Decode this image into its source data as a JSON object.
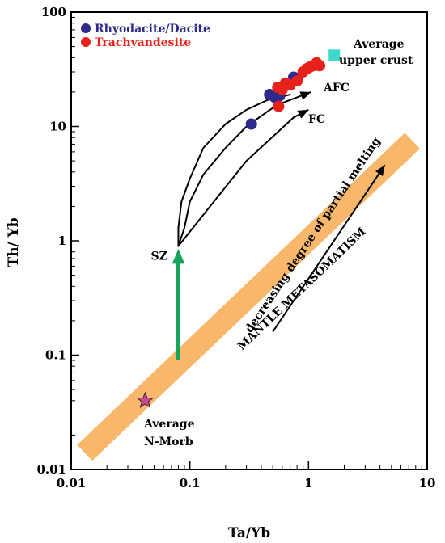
{
  "chart_data": {
    "type": "scatter",
    "x_scale": "log",
    "y_scale": "log",
    "xlim": [
      0.01,
      10
    ],
    "ylim": [
      0.01,
      100
    ],
    "xlabel": "Ta/Yb",
    "ylabel": "Th/ Yb",
    "x_ticks": [
      "0.01",
      "0.1",
      "1",
      "10"
    ],
    "y_ticks": [
      "0.01",
      "0.1",
      "1",
      "10",
      "100"
    ],
    "grid": false,
    "legend_position": "top-left",
    "series": [
      {
        "name": "Rhyodacite/Dacite",
        "color": "#2e2a8c",
        "points": [
          [
            0.33,
            10.5
          ],
          [
            0.47,
            19
          ],
          [
            0.52,
            18
          ],
          [
            0.57,
            18.5
          ],
          [
            0.75,
            27
          ],
          [
            0.8,
            26
          ]
        ]
      },
      {
        "name": "Trachyandesite",
        "color": "#e8221b",
        "points": [
          [
            0.55,
            22
          ],
          [
            0.6,
            21
          ],
          [
            0.56,
            15
          ],
          [
            0.64,
            24
          ],
          [
            0.7,
            23
          ],
          [
            0.8,
            25
          ],
          [
            0.9,
            30
          ],
          [
            0.97,
            32
          ],
          [
            1.02,
            33
          ],
          [
            1.1,
            34
          ],
          [
            1.17,
            36
          ],
          [
            1.24,
            34
          ]
        ]
      }
    ],
    "reference_points": [
      {
        "label": "Average upper crust",
        "x": 1.65,
        "y": 42,
        "color": "#3fd8cf",
        "marker": "square"
      },
      {
        "label": "Average N-Morb",
        "x": 0.042,
        "y": 0.04,
        "color": "#c34a93",
        "marker": "star"
      }
    ],
    "mantle_array": {
      "label": "MANTLE METASOMATISM",
      "color": "#f8b76a",
      "from": [
        0.013,
        0.014
      ],
      "to": [
        7.5,
        7.5
      ]
    },
    "annotations": {
      "sz": "SZ",
      "afc": "AFC",
      "fc": "FC",
      "partial_melting": "decreasing degree of partial melting",
      "crust_line1": "Average",
      "crust_line2": "upper crust",
      "morb_line1": "Average",
      "morb_line2": "N-Morb"
    },
    "trends": {
      "afc_upper": [
        [
          0.08,
          0.9
        ],
        [
          0.08,
          1.3
        ],
        [
          0.085,
          2.2
        ],
        [
          0.1,
          3.5
        ],
        [
          0.13,
          6.5
        ],
        [
          0.2,
          10.5
        ],
        [
          0.3,
          14
        ],
        [
          0.45,
          17
        ],
        [
          0.7,
          19
        ]
      ],
      "afc_lower": [
        [
          0.08,
          0.9
        ],
        [
          0.09,
          1.3
        ],
        [
          0.1,
          2.2
        ],
        [
          0.13,
          3.8
        ],
        [
          0.2,
          6.5
        ],
        [
          0.3,
          10
        ],
        [
          0.45,
          13.5
        ],
        [
          0.55,
          15.5
        ]
      ],
      "fc_arrow": [
        [
          0.08,
          0.9
        ],
        [
          0.3,
          5
        ],
        [
          0.75,
          12
        ]
      ],
      "afc_arrow_head_to": [
        1.05,
        20
      ],
      "fc_arrow_head_to": [
        1.0,
        14
      ],
      "sz_arrow": {
        "from": [
          0.08,
          0.09
        ],
        "to": [
          0.08,
          0.85
        ],
        "color": "#19a35c"
      },
      "melting_arrow": {
        "from": [
          0.5,
          0.16
        ],
        "to": [
          4.4,
          4.6
        ]
      }
    }
  }
}
